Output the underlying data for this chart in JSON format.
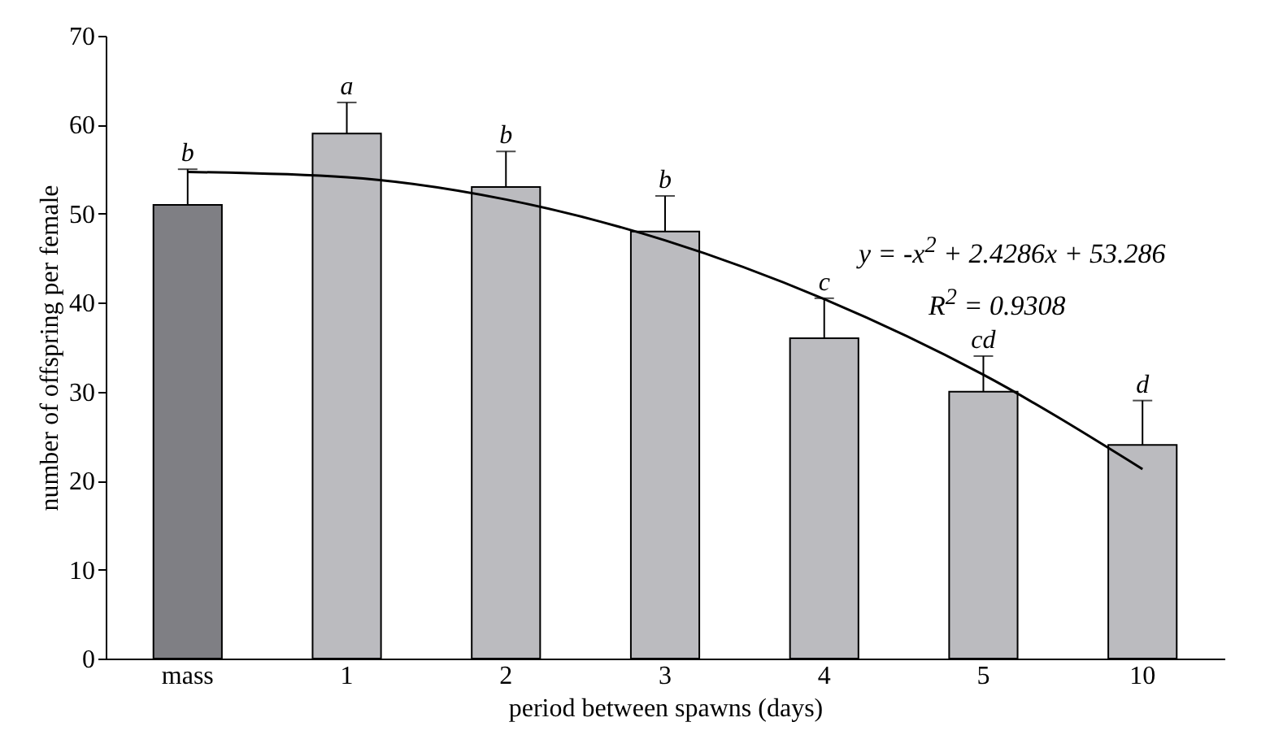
{
  "chart_data": {
    "type": "bar",
    "xlabel": "period between spawns (days)",
    "ylabel": "number of offspring per female",
    "categories": [
      "mass",
      "1",
      "2",
      "3",
      "4",
      "5",
      "10"
    ],
    "series": [
      {
        "colors": [
          "#7f7f84",
          "#bbbbbf",
          "#bbbbbf",
          "#bbbbbf",
          "#bbbbbf",
          "#bbbbbf",
          "#bbbbbf"
        ],
        "values": [
          51,
          59,
          53,
          48,
          36,
          30,
          24
        ],
        "errors": [
          [
            51,
            55
          ],
          [
            59,
            62.5
          ],
          [
            53,
            57
          ],
          [
            48,
            52
          ],
          [
            36,
            40.5
          ],
          [
            30,
            34
          ],
          [
            24,
            29
          ]
        ]
      },
      {
        "type": "line",
        "color": "#000000",
        "x": [
          "mass",
          "1",
          "2",
          "3",
          "4",
          "5",
          "10"
        ],
        "values": [
          54.7,
          54.1,
          51.6,
          47.0,
          40.4,
          31.9,
          21.3
        ]
      }
    ],
    "ylim": [
      0,
      70
    ],
    "yticks": [
      0,
      10,
      20,
      30,
      40,
      50,
      60,
      70
    ],
    "grid": false,
    "legend": false,
    "annotations": [
      {
        "text": "b",
        "x": "mass",
        "y": 55
      },
      {
        "text": "a",
        "x": "1",
        "y": 62.5
      },
      {
        "text": "b",
        "x": "2",
        "y": 57
      },
      {
        "text": "b",
        "x": "3",
        "y": 52
      },
      {
        "text": "c",
        "x": "4",
        "y": 40.5
      },
      {
        "text": "cd",
        "x": "5",
        "y": 34
      },
      {
        "text": "d",
        "x": "10",
        "y": 29
      },
      "y = -x$^{2}$ + 2.4286x + 53.286",
      "R$^{2}$ = 0.9308"
    ]
  }
}
